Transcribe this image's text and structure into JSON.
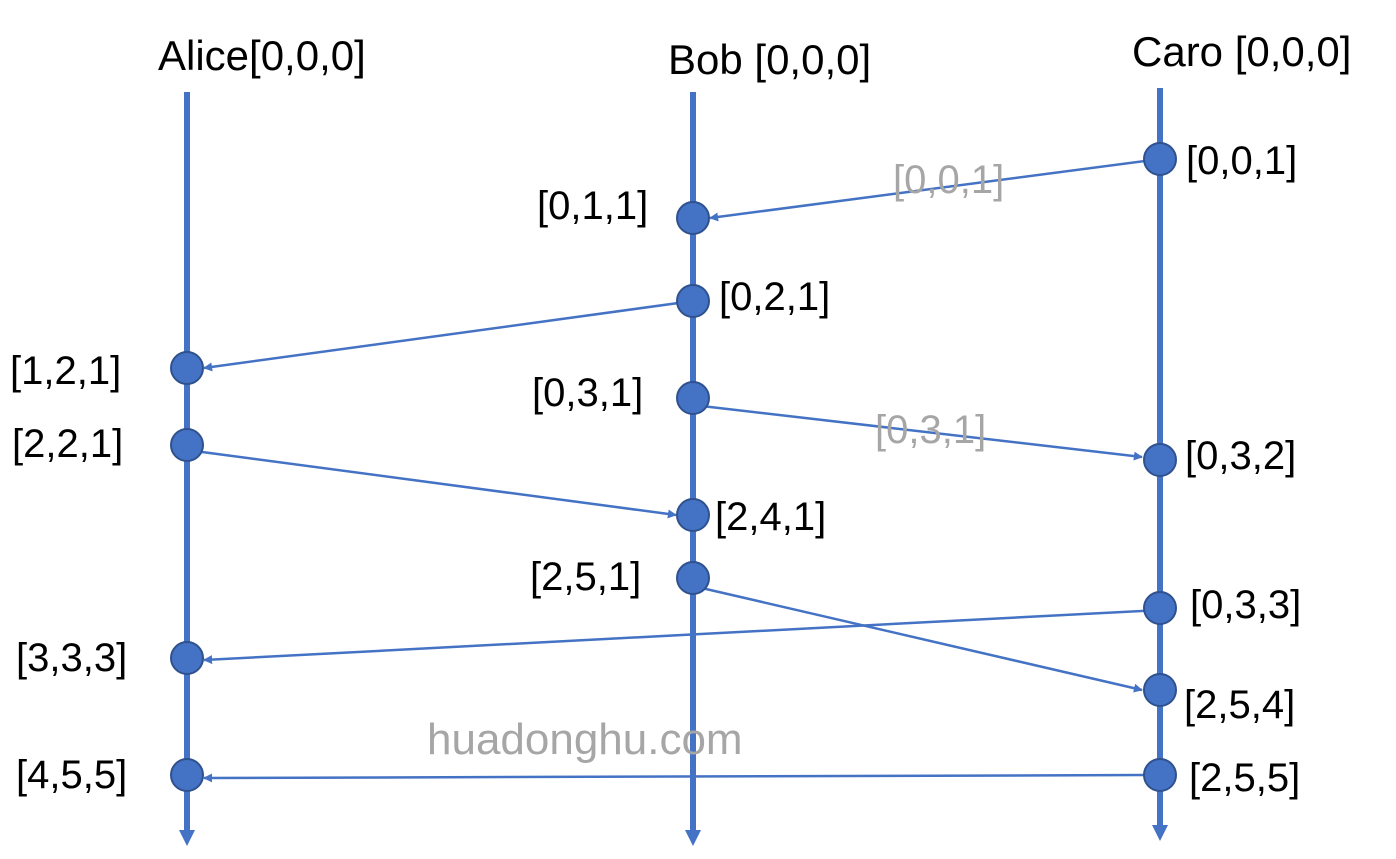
{
  "processes": {
    "alice": {
      "header": "Alice[0,0,0]"
    },
    "bob": {
      "header": "Bob [0,0,0]"
    },
    "caro": {
      "header": "Caro [0,0,0]"
    }
  },
  "events": {
    "c1": "[0,0,1]",
    "b1": "[0,1,1]",
    "b2": "[0,2,1]",
    "a1": "[1,2,1]",
    "b3": "[0,3,1]",
    "a2": "[2,2,1]",
    "c2": "[0,3,2]",
    "b4": "[2,4,1]",
    "b5": "[2,5,1]",
    "c3": "[0,3,3]",
    "a3": "[3,3,3]",
    "c4": "[2,5,4]",
    "a4": "[4,5,5]",
    "c5": "[2,5,5]"
  },
  "messages": {
    "m1": "[0,0,1]",
    "m2": "[0,3,1]"
  },
  "watermark": "huadonghu.com",
  "colors": {
    "line": "#4472c4",
    "dot": "#4472c4",
    "dot_stroke": "#2f528f",
    "message_label": "#a6a6a6",
    "text": "#000000"
  }
}
